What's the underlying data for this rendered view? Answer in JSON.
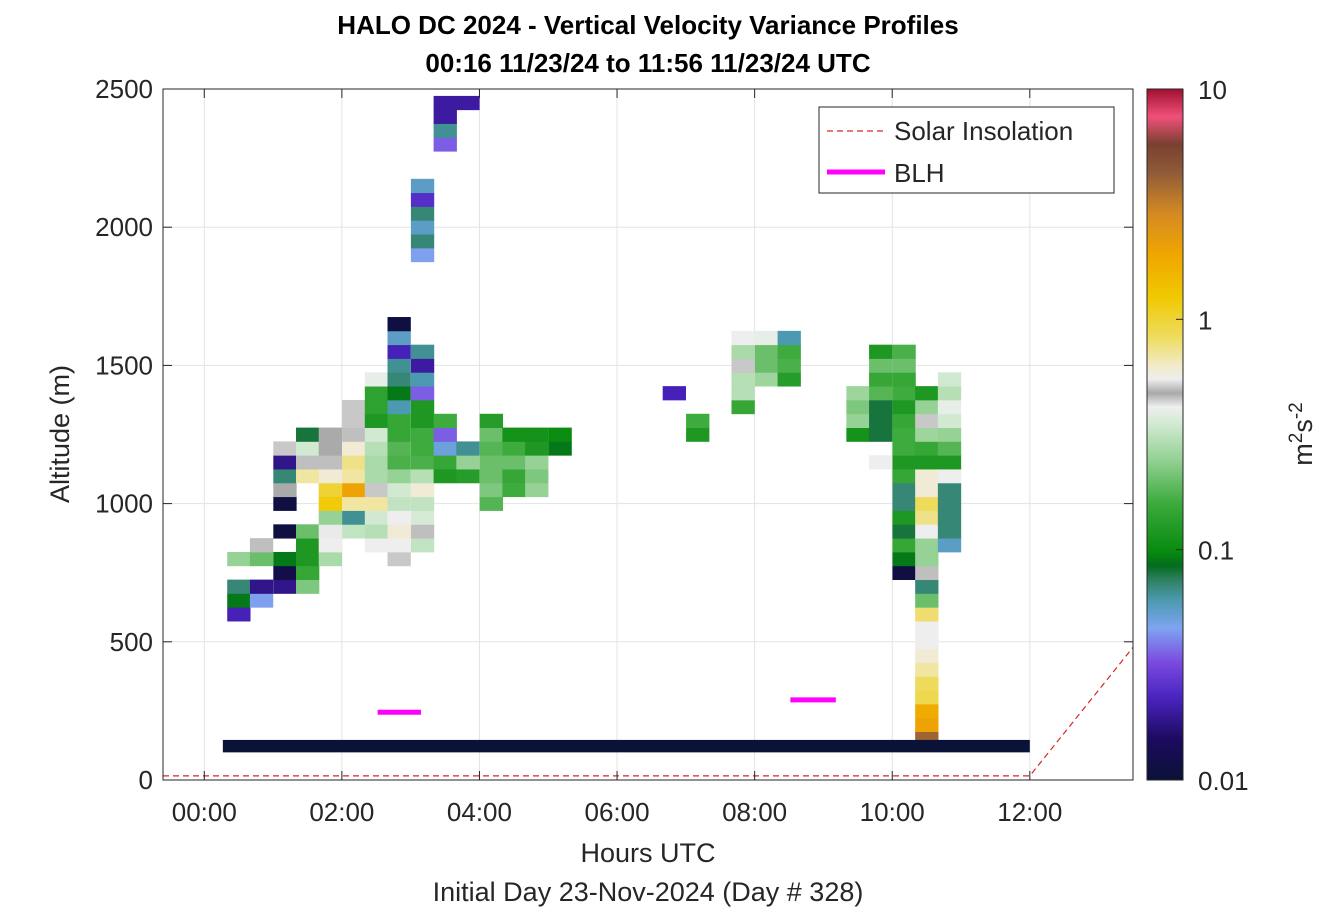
{
  "chart_data": {
    "type": "heatmap",
    "title": "HALO DC 2024 - Vertical Velocity Variance Profiles",
    "subtitle": "00:16 11/23/24 to 11:56 11/23/24  UTC",
    "xlabel": "Hours UTC",
    "xlabel2": "Initial Day 23-Nov-2024 (Day # 328)",
    "ylabel": "Altitude (m)",
    "colorbar_label": "m²s⁻²",
    "colorbar_scale": "log",
    "clim": [
      0.01,
      10
    ],
    "xlim": [
      -0.6,
      13.5
    ],
    "ylim": [
      0,
      2500
    ],
    "grid": true,
    "x_ticks": [
      0,
      2,
      4,
      6,
      8,
      10,
      12
    ],
    "x_tick_labels": [
      "00:00",
      "02:00",
      "04:00",
      "06:00",
      "08:00",
      "10:00",
      "12:00"
    ],
    "y_ticks": [
      0,
      500,
      1000,
      1500,
      2000,
      2500
    ],
    "y_tick_labels": [
      "0",
      "500",
      "1000",
      "1500",
      "2000",
      "2500"
    ],
    "cbar_ticks": [
      0.01,
      0.1,
      1,
      10
    ],
    "cbar_tick_labels": [
      "0.01",
      "0.1",
      "1",
      "10"
    ],
    "legend": {
      "placement": "top-right",
      "entries": [
        "Solar Insolation",
        "BLH"
      ]
    },
    "cell_dx_hours": 0.333,
    "cell_dz_m": 50,
    "near_surface_bar": {
      "x_start": 0.27,
      "x_end": 12.0,
      "z_bottom": 100,
      "z_top": 145,
      "value": 0.01
    },
    "blh": [
      {
        "x_start": 2.52,
        "x_end": 3.15,
        "altitude": 245
      },
      {
        "x_start": 8.52,
        "x_end": 9.18,
        "altitude": 290
      }
    ],
    "solar_insolation": {
      "x": [
        -0.6,
        12.0,
        13.5
      ],
      "y": [
        15,
        15,
        480
      ]
    },
    "cells": [
      [
        0.5,
        600,
        0.022
      ],
      [
        0.5,
        650,
        0.09
      ],
      [
        0.5,
        700,
        0.07
      ],
      [
        0.5,
        800,
        0.25
      ],
      [
        0.83,
        650,
        0.045
      ],
      [
        0.83,
        700,
        0.018
      ],
      [
        0.83,
        800,
        0.2
      ],
      [
        0.83,
        850,
        0.5
      ],
      [
        1.17,
        700,
        0.018
      ],
      [
        1.17,
        750,
        0.012
      ],
      [
        1.17,
        800,
        0.09
      ],
      [
        1.17,
        900,
        0.011
      ],
      [
        1.17,
        1000,
        0.011
      ],
      [
        1.17,
        1050,
        0.48
      ],
      [
        1.17,
        1100,
        0.07
      ],
      [
        1.17,
        1150,
        0.018
      ],
      [
        1.17,
        1200,
        0.45
      ],
      [
        1.5,
        700,
        0.22
      ],
      [
        1.5,
        750,
        0.15
      ],
      [
        1.5,
        800,
        0.12
      ],
      [
        1.5,
        850,
        0.12
      ],
      [
        1.5,
        900,
        0.2
      ],
      [
        1.5,
        1100,
        0.7
      ],
      [
        1.5,
        1150,
        0.5
      ],
      [
        1.5,
        1200,
        0.35
      ],
      [
        1.5,
        1250,
        0.08
      ],
      [
        1.83,
        800,
        0.28
      ],
      [
        1.83,
        850,
        0.55
      ],
      [
        1.83,
        900,
        0.42
      ],
      [
        1.83,
        950,
        0.25
      ],
      [
        1.83,
        1000,
        1.2
      ],
      [
        1.83,
        1050,
        1.0
      ],
      [
        1.83,
        1100,
        0.6
      ],
      [
        1.83,
        1150,
        0.5
      ],
      [
        1.83,
        1200,
        0.48
      ],
      [
        1.83,
        1250,
        0.48
      ],
      [
        2.17,
        900,
        0.32
      ],
      [
        2.17,
        950,
        0.065
      ],
      [
        2.17,
        1000,
        0.7
      ],
      [
        2.17,
        1050,
        2.0
      ],
      [
        2.17,
        1100,
        0.7
      ],
      [
        2.17,
        1150,
        0.75
      ],
      [
        2.17,
        1200,
        0.6
      ],
      [
        2.17,
        1250,
        0.5
      ],
      [
        2.17,
        1300,
        0.45
      ],
      [
        2.17,
        1350,
        0.45
      ],
      [
        2.5,
        850,
        0.55
      ],
      [
        2.5,
        900,
        0.3
      ],
      [
        2.5,
        950,
        0.35
      ],
      [
        2.5,
        1000,
        0.7
      ],
      [
        2.5,
        1050,
        0.45
      ],
      [
        2.5,
        1100,
        0.28
      ],
      [
        2.5,
        1150,
        0.28
      ],
      [
        2.5,
        1200,
        0.3
      ],
      [
        2.5,
        1250,
        0.35
      ],
      [
        2.5,
        1300,
        0.12
      ],
      [
        2.5,
        1350,
        0.14
      ],
      [
        2.5,
        1400,
        0.14
      ],
      [
        2.5,
        1450,
        0.4
      ],
      [
        2.83,
        800,
        0.45
      ],
      [
        2.83,
        850,
        0.55
      ],
      [
        2.83,
        900,
        0.6
      ],
      [
        2.83,
        950,
        0.55
      ],
      [
        2.83,
        1000,
        0.32
      ],
      [
        2.83,
        1050,
        0.35
      ],
      [
        2.83,
        1100,
        0.25
      ],
      [
        2.83,
        1150,
        0.17
      ],
      [
        2.83,
        1200,
        0.18
      ],
      [
        2.83,
        1250,
        0.15
      ],
      [
        2.83,
        1300,
        0.15
      ],
      [
        2.83,
        1350,
        0.06
      ],
      [
        2.83,
        1400,
        0.09
      ],
      [
        2.83,
        1450,
        0.07
      ],
      [
        2.83,
        1500,
        0.065
      ],
      [
        2.83,
        1550,
        0.022
      ],
      [
        2.83,
        1600,
        0.055
      ],
      [
        2.83,
        1650,
        0.011
      ],
      [
        3.17,
        850,
        0.32
      ],
      [
        3.17,
        900,
        0.5
      ],
      [
        3.17,
        950,
        0.36
      ],
      [
        3.17,
        1000,
        0.32
      ],
      [
        3.17,
        1050,
        0.6
      ],
      [
        3.17,
        1100,
        0.3
      ],
      [
        3.17,
        1150,
        0.17
      ],
      [
        3.17,
        1200,
        0.16
      ],
      [
        3.17,
        1250,
        0.16
      ],
      [
        3.17,
        1300,
        0.12
      ],
      [
        3.17,
        1350,
        0.12
      ],
      [
        3.17,
        1400,
        0.035
      ],
      [
        3.17,
        1450,
        0.06
      ],
      [
        3.17,
        1500,
        0.02
      ],
      [
        3.17,
        1550,
        0.065
      ],
      [
        3.17,
        1900,
        0.045
      ],
      [
        3.17,
        1950,
        0.07
      ],
      [
        3.17,
        2000,
        0.055
      ],
      [
        3.17,
        2050,
        0.07
      ],
      [
        3.17,
        2100,
        0.025
      ],
      [
        3.17,
        2150,
        0.055
      ],
      [
        3.5,
        1100,
        0.12
      ],
      [
        3.5,
        1150,
        0.15
      ],
      [
        3.5,
        1200,
        0.05
      ],
      [
        3.5,
        1250,
        0.035
      ],
      [
        3.5,
        1300,
        0.16
      ],
      [
        3.5,
        2300,
        0.035
      ],
      [
        3.5,
        2350,
        0.065
      ],
      [
        3.5,
        2400,
        0.02
      ],
      [
        3.5,
        2450,
        0.02
      ],
      [
        3.83,
        1100,
        0.13
      ],
      [
        3.83,
        1150,
        0.25
      ],
      [
        3.83,
        1200,
        0.065
      ],
      [
        3.83,
        2450,
        0.02
      ],
      [
        4.17,
        1000,
        0.18
      ],
      [
        4.17,
        1050,
        0.22
      ],
      [
        4.17,
        1100,
        0.2
      ],
      [
        4.17,
        1150,
        0.2
      ],
      [
        4.17,
        1200,
        0.18
      ],
      [
        4.17,
        1250,
        0.2
      ],
      [
        4.17,
        1300,
        0.13
      ],
      [
        4.5,
        1050,
        0.16
      ],
      [
        4.5,
        1100,
        0.15
      ],
      [
        4.5,
        1150,
        0.2
      ],
      [
        4.5,
        1200,
        0.16
      ],
      [
        4.5,
        1250,
        0.11
      ],
      [
        4.83,
        1050,
        0.25
      ],
      [
        4.83,
        1100,
        0.22
      ],
      [
        4.83,
        1150,
        0.25
      ],
      [
        4.83,
        1200,
        0.12
      ],
      [
        4.83,
        1250,
        0.11
      ],
      [
        5.17,
        1200,
        0.09
      ],
      [
        5.17,
        1250,
        0.1
      ],
      [
        6.83,
        1400,
        0.022
      ],
      [
        7.17,
        1250,
        0.12
      ],
      [
        7.17,
        1300,
        0.16
      ],
      [
        7.83,
        1350,
        0.15
      ],
      [
        7.83,
        1400,
        0.3
      ],
      [
        7.83,
        1450,
        0.3
      ],
      [
        7.83,
        1500,
        0.45
      ],
      [
        7.83,
        1550,
        0.28
      ],
      [
        7.83,
        1600,
        0.55
      ],
      [
        8.17,
        1450,
        0.26
      ],
      [
        8.17,
        1500,
        0.2
      ],
      [
        8.17,
        1550,
        0.2
      ],
      [
        8.17,
        1600,
        0.4
      ],
      [
        8.5,
        1450,
        0.13
      ],
      [
        8.5,
        1500,
        0.17
      ],
      [
        8.5,
        1550,
        0.16
      ],
      [
        8.5,
        1600,
        0.06
      ],
      [
        9.5,
        1250,
        0.11
      ],
      [
        9.5,
        1300,
        0.25
      ],
      [
        9.5,
        1350,
        0.22
      ],
      [
        9.5,
        1400,
        0.26
      ],
      [
        9.83,
        1150,
        0.55
      ],
      [
        9.83,
        1250,
        0.08
      ],
      [
        9.83,
        1300,
        0.08
      ],
      [
        9.83,
        1350,
        0.08
      ],
      [
        9.83,
        1400,
        0.18
      ],
      [
        9.83,
        1450,
        0.15
      ],
      [
        9.83,
        1500,
        0.2
      ],
      [
        9.83,
        1550,
        0.12
      ],
      [
        10.17,
        750,
        0.011
      ],
      [
        10.17,
        800,
        0.09
      ],
      [
        10.17,
        850,
        0.15
      ],
      [
        10.17,
        900,
        0.08
      ],
      [
        10.17,
        950,
        0.12
      ],
      [
        10.17,
        1000,
        0.07
      ],
      [
        10.17,
        1050,
        0.07
      ],
      [
        10.17,
        1100,
        0.15
      ],
      [
        10.17,
        1150,
        0.12
      ],
      [
        10.17,
        1200,
        0.16
      ],
      [
        10.17,
        1250,
        0.16
      ],
      [
        10.17,
        1300,
        0.15
      ],
      [
        10.17,
        1350,
        0.12
      ],
      [
        10.17,
        1400,
        0.16
      ],
      [
        10.17,
        1450,
        0.15
      ],
      [
        10.17,
        1500,
        0.2
      ],
      [
        10.17,
        1550,
        0.17
      ],
      [
        10.5,
        150,
        4.0
      ],
      [
        10.5,
        200,
        2.0
      ],
      [
        10.5,
        250,
        1.8
      ],
      [
        10.5,
        300,
        0.9
      ],
      [
        10.5,
        350,
        0.85
      ],
      [
        10.5,
        400,
        0.7
      ],
      [
        10.5,
        450,
        0.6
      ],
      [
        10.5,
        500,
        0.55
      ],
      [
        10.5,
        550,
        0.55
      ],
      [
        10.5,
        600,
        0.8
      ],
      [
        10.5,
        650,
        0.2
      ],
      [
        10.5,
        700,
        0.07
      ],
      [
        10.5,
        750,
        0.5
      ],
      [
        10.5,
        800,
        0.25
      ],
      [
        10.5,
        850,
        0.25
      ],
      [
        10.5,
        900,
        0.55
      ],
      [
        10.5,
        950,
        0.75
      ],
      [
        10.5,
        1000,
        0.85
      ],
      [
        10.5,
        1050,
        0.6
      ],
      [
        10.5,
        1100,
        0.6
      ],
      [
        10.5,
        1150,
        0.12
      ],
      [
        10.5,
        1200,
        0.15
      ],
      [
        10.5,
        1250,
        0.26
      ],
      [
        10.5,
        1300,
        0.45
      ],
      [
        10.5,
        1350,
        0.25
      ],
      [
        10.5,
        1400,
        0.12
      ],
      [
        10.83,
        850,
        0.055
      ],
      [
        10.83,
        900,
        0.07
      ],
      [
        10.83,
        950,
        0.07
      ],
      [
        10.83,
        1000,
        0.07
      ],
      [
        10.83,
        1050,
        0.07
      ],
      [
        10.83,
        1100,
        0.55
      ],
      [
        10.83,
        1150,
        0.12
      ],
      [
        10.83,
        1200,
        0.18
      ],
      [
        10.83,
        1250,
        0.25
      ],
      [
        10.83,
        1300,
        0.35
      ],
      [
        10.83,
        1350,
        0.4
      ],
      [
        10.83,
        1400,
        0.3
      ],
      [
        10.83,
        1450,
        0.35
      ]
    ]
  }
}
